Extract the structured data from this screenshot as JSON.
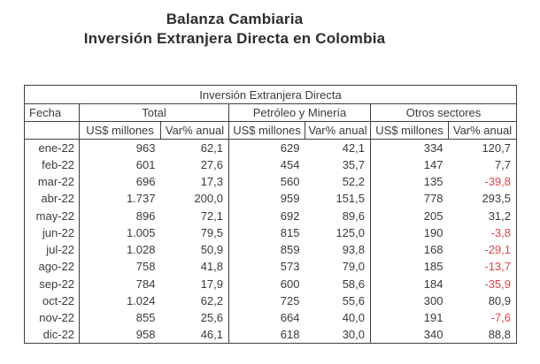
{
  "title": {
    "line1": "Balanza Cambiaria",
    "line2": "Inversión Extranjera Directa en Colombia"
  },
  "table": {
    "caption": "Inversión Extranjera Directa",
    "date_header": "Fecha",
    "groups": [
      {
        "label": "Total"
      },
      {
        "label": "Petróleo y Minería"
      },
      {
        "label": "Otros sectores"
      }
    ],
    "subheaders": {
      "amount": "US$ millones",
      "var": "Var% anual"
    },
    "columns": [
      "fecha",
      "total_usd",
      "total_var",
      "pet_usd",
      "pet_var",
      "otros_usd",
      "otros_var"
    ],
    "rows": [
      {
        "fecha": "ene-22",
        "total_usd": "963",
        "total_var": "62,1",
        "pet_usd": "629",
        "pet_var": "42,1",
        "otros_usd": "334",
        "otros_var": "120,7"
      },
      {
        "fecha": "feb-22",
        "total_usd": "601",
        "total_var": "27,6",
        "pet_usd": "454",
        "pet_var": "35,7",
        "otros_usd": "147",
        "otros_var": "7,7"
      },
      {
        "fecha": "mar-22",
        "total_usd": "696",
        "total_var": "17,3",
        "pet_usd": "560",
        "pet_var": "52,2",
        "otros_usd": "135",
        "otros_var": "-39,8"
      },
      {
        "fecha": "abr-22",
        "total_usd": "1.737",
        "total_var": "200,0",
        "pet_usd": "959",
        "pet_var": "151,5",
        "otros_usd": "778",
        "otros_var": "293,5"
      },
      {
        "fecha": "may-22",
        "total_usd": "896",
        "total_var": "72,1",
        "pet_usd": "692",
        "pet_var": "89,6",
        "otros_usd": "205",
        "otros_var": "31,2"
      },
      {
        "fecha": "jun-22",
        "total_usd": "1.005",
        "total_var": "79,5",
        "pet_usd": "815",
        "pet_var": "125,0",
        "otros_usd": "190",
        "otros_var": "-3,8"
      },
      {
        "fecha": "jul-22",
        "total_usd": "1.028",
        "total_var": "50,9",
        "pet_usd": "859",
        "pet_var": "93,8",
        "otros_usd": "168",
        "otros_var": "-29,1"
      },
      {
        "fecha": "ago-22",
        "total_usd": "758",
        "total_var": "41,8",
        "pet_usd": "573",
        "pet_var": "79,0",
        "otros_usd": "185",
        "otros_var": "-13,7"
      },
      {
        "fecha": "sep-22",
        "total_usd": "784",
        "total_var": "17,9",
        "pet_usd": "600",
        "pet_var": "58,6",
        "otros_usd": "184",
        "otros_var": "-35,9"
      },
      {
        "fecha": "oct-22",
        "total_usd": "1.024",
        "total_var": "62,2",
        "pet_usd": "725",
        "pet_var": "55,6",
        "otros_usd": "300",
        "otros_var": "80,9"
      },
      {
        "fecha": "nov-22",
        "total_usd": "855",
        "total_var": "25,6",
        "pet_usd": "664",
        "pet_var": "40,0",
        "otros_usd": "191",
        "otros_var": "-7,6"
      },
      {
        "fecha": "dic-22",
        "total_usd": "958",
        "total_var": "46,1",
        "pet_usd": "618",
        "pet_var": "30,0",
        "otros_usd": "340",
        "otros_var": "88,8"
      }
    ]
  },
  "colors": {
    "negative": "#e8424a",
    "text": "#3a3a3a",
    "border": "#3f3f3f"
  },
  "chart_data": {
    "type": "table",
    "title": "Inversión Extranjera Directa",
    "columns": [
      "Fecha",
      "Total US$ millones",
      "Total Var% anual",
      "Petróleo y Minería US$ millones",
      "Petróleo y Minería Var% anual",
      "Otros sectores US$ millones",
      "Otros sectores Var% anual"
    ],
    "rows": [
      [
        "ene-22",
        963,
        62.1,
        629,
        42.1,
        334,
        120.7
      ],
      [
        "feb-22",
        601,
        27.6,
        454,
        35.7,
        147,
        7.7
      ],
      [
        "mar-22",
        696,
        17.3,
        560,
        52.2,
        135,
        -39.8
      ],
      [
        "abr-22",
        1737,
        200.0,
        959,
        151.5,
        778,
        293.5
      ],
      [
        "may-22",
        896,
        72.1,
        692,
        89.6,
        205,
        31.2
      ],
      [
        "jun-22",
        1005,
        79.5,
        815,
        125.0,
        190,
        -3.8
      ],
      [
        "jul-22",
        1028,
        50.9,
        859,
        93.8,
        168,
        -29.1
      ],
      [
        "ago-22",
        758,
        41.8,
        573,
        79.0,
        185,
        -13.7
      ],
      [
        "sep-22",
        784,
        17.9,
        600,
        58.6,
        184,
        -35.9
      ],
      [
        "oct-22",
        1024,
        62.2,
        725,
        55.6,
        300,
        80.9
      ],
      [
        "nov-22",
        855,
        25.6,
        664,
        40.0,
        191,
        -7.6
      ],
      [
        "dic-22",
        958,
        46.1,
        618,
        30.0,
        340,
        88.8
      ]
    ]
  }
}
